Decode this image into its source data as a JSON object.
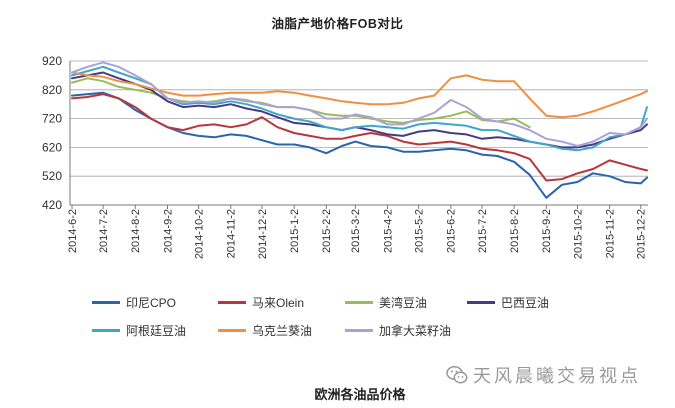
{
  "chart_data": {
    "type": "line",
    "title": "油脂产地价格FOB对比",
    "x": [
      "2014-06-02",
      "2014-06-17",
      "2014-07-02",
      "2014-07-17",
      "2014-08-02",
      "2014-08-17",
      "2014-09-02",
      "2014-09-17",
      "2014-10-02",
      "2014-10-17",
      "2014-11-02",
      "2014-11-17",
      "2014-12-02",
      "2014-12-17",
      "2015-01-02",
      "2015-01-17",
      "2015-02-02",
      "2015-02-17",
      "2015-03-02",
      "2015-03-17",
      "2015-04-02",
      "2015-04-17",
      "2015-05-02",
      "2015-05-17",
      "2015-06-02",
      "2015-06-17",
      "2015-07-02",
      "2015-07-17",
      "2015-08-02",
      "2015-08-17",
      "2015-09-02",
      "2015-09-17",
      "2015-10-02",
      "2015-10-17",
      "2015-11-02",
      "2015-11-17",
      "2015-12-02",
      "2015-12-08"
    ],
    "xticks": [
      "2014-6-2",
      "2014-7-2",
      "2014-8-2",
      "2014-9-2",
      "2014-10-2",
      "2014-11-2",
      "2014-12-2",
      "2015-1-2",
      "2015-2-2",
      "2015-3-2",
      "2015-4-2",
      "2015-5-2",
      "2015-6-2",
      "2015-7-2",
      "2015-8-2",
      "2015-9-2",
      "2015-10-2",
      "2015-11-2",
      "2015-12-2"
    ],
    "yticks": [
      920,
      820,
      720,
      620,
      520,
      420
    ],
    "ylim": [
      420,
      920
    ],
    "grid": true,
    "legend": "bottom",
    "series": [
      {
        "name": "印尼CPO",
        "color": "#2a64ad",
        "values": [
          800,
          805,
          810,
          790,
          750,
          720,
          690,
          670,
          660,
          655,
          665,
          660,
          645,
          630,
          630,
          620,
          600,
          625,
          640,
          625,
          620,
          605,
          605,
          610,
          615,
          610,
          595,
          590,
          570,
          525,
          445,
          490,
          500,
          530,
          520,
          500,
          495,
          515
        ]
      },
      {
        "name": "马来Olein",
        "color": "#b9363a",
        "values": [
          790,
          795,
          805,
          790,
          760,
          720,
          690,
          680,
          695,
          700,
          690,
          700,
          725,
          690,
          670,
          660,
          650,
          650,
          660,
          670,
          660,
          640,
          630,
          635,
          640,
          630,
          615,
          610,
          600,
          580,
          505,
          510,
          530,
          545,
          575,
          560,
          545,
          540
        ]
      },
      {
        "name": "美湾豆油",
        "color": "#9bbb59",
        "values": [
          845,
          860,
          850,
          830,
          820,
          810,
          790,
          780,
          775,
          780,
          790,
          780,
          775,
          760,
          760,
          750,
          735,
          730,
          730,
          720,
          710,
          705,
          715,
          720,
          730,
          745,
          715,
          710,
          720,
          690,
          null,
          null,
          null,
          null,
          null,
          null,
          null,
          null
        ]
      },
      {
        "name": "巴西豆油",
        "color": "#473b85",
        "values": [
          860,
          870,
          880,
          860,
          840,
          820,
          780,
          760,
          765,
          760,
          770,
          755,
          745,
          725,
          705,
          700,
          690,
          680,
          690,
          680,
          665,
          660,
          675,
          680,
          670,
          665,
          650,
          655,
          650,
          640,
          630,
          620,
          620,
          630,
          650,
          665,
          680,
          700
        ]
      },
      {
        "name": "阿根廷豆油",
        "color": "#3fa7c6",
        "values": [
          870,
          885,
          900,
          880,
          860,
          840,
          790,
          770,
          775,
          770,
          780,
          770,
          755,
          735,
          720,
          710,
          690,
          680,
          690,
          695,
          690,
          685,
          700,
          705,
          700,
          695,
          680,
          680,
          660,
          640,
          630,
          615,
          610,
          620,
          655,
          665,
          690,
          760
        ]
      },
      {
        "name": "乌克兰葵油",
        "color": "#ef8f3f",
        "values": [
          880,
          870,
          865,
          850,
          840,
          825,
          810,
          800,
          800,
          805,
          810,
          810,
          810,
          815,
          810,
          800,
          790,
          780,
          775,
          770,
          770,
          775,
          790,
          800,
          860,
          870,
          855,
          850,
          850,
          790,
          730,
          725,
          730,
          745,
          765,
          785,
          805,
          815
        ]
      },
      {
        "name": "加拿大菜籽油",
        "color": "#a7a3d8",
        "values": [
          880,
          900,
          915,
          900,
          870,
          840,
          790,
          775,
          780,
          775,
          790,
          785,
          770,
          760,
          760,
          750,
          720,
          720,
          735,
          725,
          700,
          700,
          720,
          740,
          785,
          760,
          720,
          710,
          700,
          680,
          650,
          640,
          625,
          640,
          670,
          665,
          690,
          720
        ]
      }
    ]
  },
  "caption": "欧洲各油品价格",
  "watermark": {
    "icon": "wechat-icon",
    "text": "天风晨曦交易视点"
  }
}
